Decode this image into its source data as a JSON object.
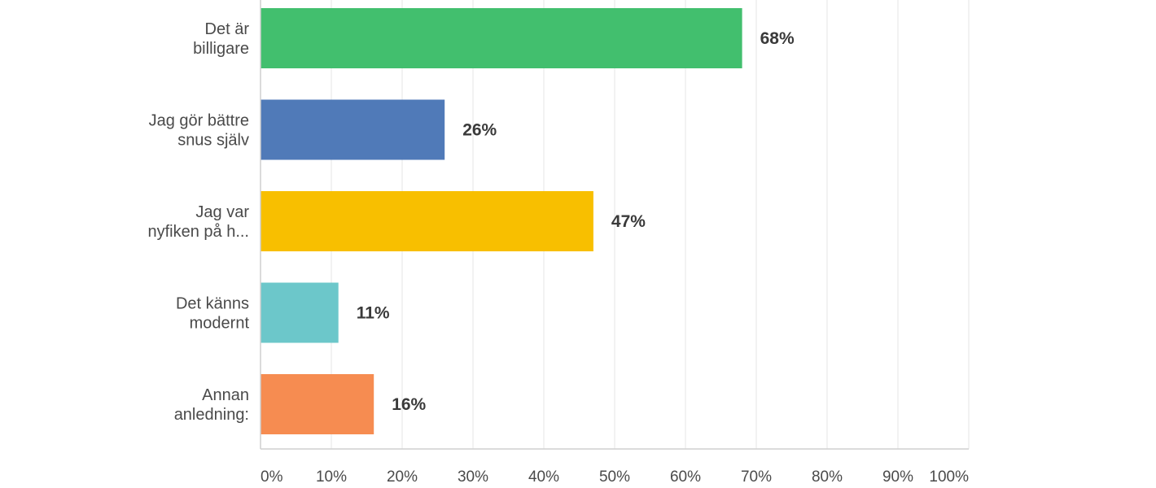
{
  "chart_data": {
    "type": "bar",
    "orientation": "horizontal",
    "categories": [
      [
        "Det är",
        "billigare"
      ],
      [
        "Jag gör bättre",
        "snus själv"
      ],
      [
        "Jag var",
        "nyfiken på h..."
      ],
      [
        "Det känns",
        "modernt"
      ],
      [
        "Annan",
        "anledning:"
      ]
    ],
    "values": [
      68,
      26,
      47,
      11,
      16
    ],
    "value_labels": [
      "68%",
      "26%",
      "47%",
      "11%",
      "16%"
    ],
    "bar_colors": [
      "#42bf6e",
      "#507ab8",
      "#f8bf00",
      "#6cc7ca",
      "#f68c51"
    ],
    "x_ticks": [
      {
        "value": 0,
        "label": "0%"
      },
      {
        "value": 10,
        "label": "10%"
      },
      {
        "value": 20,
        "label": "20%"
      },
      {
        "value": 30,
        "label": "30%"
      },
      {
        "value": 40,
        "label": "40%"
      },
      {
        "value": 50,
        "label": "50%"
      },
      {
        "value": 60,
        "label": "60%"
      },
      {
        "value": 70,
        "label": "70%"
      },
      {
        "value": 80,
        "label": "80%"
      },
      {
        "value": 90,
        "label": "90%"
      },
      {
        "value": 100,
        "label": "100%"
      }
    ],
    "xlim": [
      0,
      100
    ],
    "grid": true,
    "gridline_color": "#e5e5e5",
    "axis_color": "#cfcfcf",
    "title": "",
    "xlabel": "",
    "ylabel": ""
  }
}
